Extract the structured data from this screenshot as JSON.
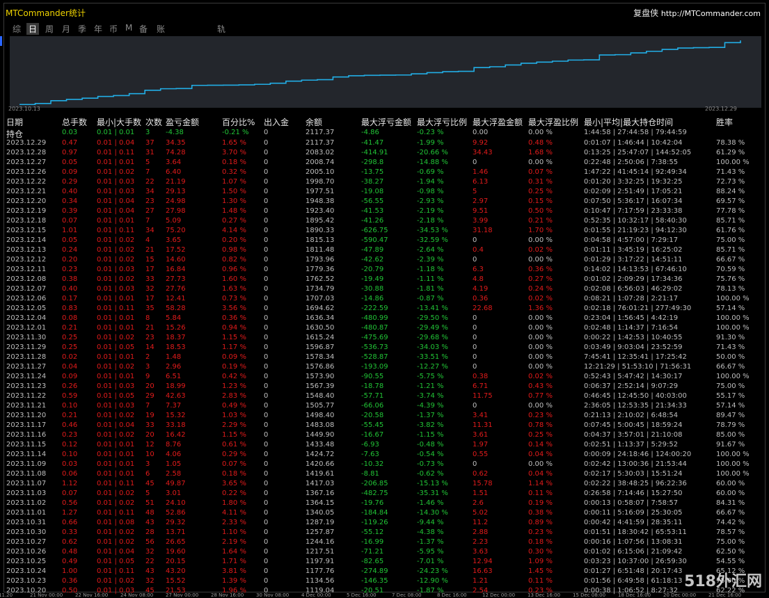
{
  "app_title": "MTCommander统计",
  "brand": {
    "name": "复盘侠",
    "url": "http://MTCommander.com"
  },
  "tabs": [
    "综",
    "日",
    "周",
    "月",
    "季",
    "年",
    "币",
    "M",
    "备",
    "账户",
    "轨迹"
  ],
  "active_tab": "日",
  "colors": {
    "profit": "#e21b1b",
    "loss": "#21c436",
    "neutral": "#bfbfbf",
    "line": "#22aee6",
    "panel": "#23262c"
  },
  "chart_data": {
    "type": "line",
    "x_labels": [
      "2023.10.13",
      "2023.12.29"
    ],
    "series": [
      {
        "values": [
          1119.04,
          1134.56,
          1177.76,
          1197.91,
          1217.51,
          1244.16,
          1257.87,
          1287.19,
          1340.05,
          1364.15,
          1367.16,
          1417.03,
          1419.61,
          1420.66,
          1424.72,
          1433.48,
          1449.9,
          1483.08,
          1498.4,
          1505.77,
          1548.4,
          1567.39,
          1573.9,
          1576.86,
          1578.34,
          1596.87,
          1615.24,
          1630.5,
          1636.34,
          1694.62,
          1707.03,
          1734.79,
          1762.52,
          1779.36,
          1793.96,
          1811.48,
          1815.13,
          1890.33,
          1895.42,
          1923.4,
          1948.38,
          1977.51,
          1998.7,
          2005.1,
          2008.74,
          2083.02,
          2117.37
        ]
      }
    ]
  },
  "header": {
    "date": "日期",
    "total_lots": "总手数",
    "min_max_lots": "最小|大手数",
    "count": "次数",
    "pnl": "盈亏金额",
    "pct": "百分比%",
    "inout": "出入金",
    "balance": "余额",
    "max_float_loss": "最大浮亏金额",
    "max_float_loss_pct": "最大浮亏比例",
    "max_float_profit": "最大浮盈金额",
    "max_float_profit_pct": "最大浮盈比例",
    "hold_time": "最小|平均|最大持仓时间",
    "winrate": "胜率"
  },
  "holding": {
    "label": "持仓",
    "lots": "0.03",
    "minmax": "0.01 | 0.01",
    "count": "3",
    "pnl": "-4.38",
    "pct": "-0.21 %",
    "inout": "0",
    "balance": "2117.37",
    "fl": "-4.86",
    "flp": "-0.23 %",
    "fp": "0.00",
    "fpp": "0.00 %",
    "time": "1:44:58 | 27:44:58 | 79:44:59"
  },
  "rows": [
    [
      "2023.12.29",
      "0.47",
      "0.01 | 0.04",
      "37",
      "34.35",
      "1.65 %",
      "0",
      "2117.37",
      "-41.47",
      "-1.99 %",
      "9.92",
      "0.48 %",
      "0:01:07 | 1:46:44 | 10:42:04",
      "78.38 %"
    ],
    [
      "2023.12.28",
      "0.97",
      "0.01 | 0.11",
      "31",
      "74.28",
      "3.70 %",
      "0",
      "2083.02",
      "-414.91",
      "-20.66 %",
      "34.43",
      "1.68 %",
      "0:13:25 | 25:47:07 | 144:52:05",
      "61.29 %"
    ],
    [
      "2023.12.27",
      "0.05",
      "0.01 | 0.01",
      "5",
      "3.64",
      "0.18 %",
      "0",
      "2008.74",
      "-298.8",
      "-14.88 %",
      "0",
      "0.00 %",
      "0:22:48 | 2:50:06 | 7:38:55",
      "100.00 %"
    ],
    [
      "2023.12.26",
      "0.09",
      "0.01 | 0.02",
      "7",
      "6.40",
      "0.32 %",
      "0",
      "2005.10",
      "-13.75",
      "-0.69 %",
      "1.46",
      "0.07 %",
      "1:47:22 | 41:45:14 | 92:49:34",
      "71.43 %"
    ],
    [
      "2023.12.22",
      "0.29",
      "0.01 | 0.03",
      "22",
      "21.19",
      "1.07 %",
      "0",
      "1998.70",
      "-38.27",
      "-1.94 %",
      "6.13",
      "0.31 %",
      "0:01:20 | 3:32:25 | 19:32:25",
      "72.73 %"
    ],
    [
      "2023.12.21",
      "0.40",
      "0.01 | 0.03",
      "34",
      "29.13",
      "1.50 %",
      "0",
      "1977.51",
      "-19.08",
      "-0.98 %",
      "5",
      "0.25 %",
      "0:02:09 | 2:51:49 | 17:05:21",
      "88.24 %"
    ],
    [
      "2023.12.20",
      "0.34",
      "0.01 | 0.04",
      "23",
      "24.98",
      "1.30 %",
      "0",
      "1948.38",
      "-56.55",
      "-2.93 %",
      "2.97",
      "0.15 %",
      "0:07:50 | 5:36:17 | 16:07:34",
      "69.57 %"
    ],
    [
      "2023.12.19",
      "0.39",
      "0.01 | 0.04",
      "27",
      "27.98",
      "1.48 %",
      "0",
      "1923.40",
      "-41.53",
      "-2.19 %",
      "9.51",
      "0.50 %",
      "0:10:47 | 7:17:59 | 23:33:38",
      "77.78 %"
    ],
    [
      "2023.12.18",
      "0.07",
      "0.01 | 0.01",
      "7",
      "5.09",
      "0.27 %",
      "0",
      "1895.42",
      "-41.26",
      "-2.18 %",
      "3.99",
      "0.21 %",
      "0:52:35 | 10:32:17 | 58:40:30",
      "85.71 %"
    ],
    [
      "2023.12.15",
      "1.01",
      "0.01 | 0.11",
      "34",
      "75.20",
      "4.14 %",
      "0",
      "1890.33",
      "-626.75",
      "-34.53 %",
      "31.18",
      "1.70 %",
      "0:01:55 | 21:19:23 | 94:12:30",
      "61.76 %"
    ],
    [
      "2023.12.14",
      "0.05",
      "0.01 | 0.02",
      "4",
      "3.65",
      "0.20 %",
      "0",
      "1815.13",
      "-590.47",
      "-32.59 %",
      "0",
      "0.00 %",
      "0:04:58 | 4:57:00 | 7:29:17",
      "75.00 %"
    ],
    [
      "2023.12.13",
      "0.24",
      "0.01 | 0.02",
      "21",
      "17.52",
      "0.98 %",
      "0",
      "1811.48",
      "-47.89",
      "-2.64 %",
      "0.4",
      "0.02 %",
      "0:01:11 | 3:45:19 | 16:25:02",
      "85.71 %"
    ],
    [
      "2023.12.12",
      "0.20",
      "0.01 | 0.02",
      "15",
      "14.60",
      "0.82 %",
      "0",
      "1793.96",
      "-42.62",
      "-2.39 %",
      "0",
      "0.00 %",
      "0:01:29 | 3:17:22 | 14:51:11",
      "66.67 %"
    ],
    [
      "2023.12.11",
      "0.23",
      "0.01 | 0.03",
      "17",
      "16.84",
      "0.96 %",
      "0",
      "1779.36",
      "-20.79",
      "-1.18 %",
      "6.3",
      "0.36 %",
      "0:14:02 | 14:13:53 | 67:46:10",
      "70.59 %"
    ],
    [
      "2023.12.08",
      "0.38",
      "0.01 | 0.02",
      "33",
      "27.73",
      "1.60 %",
      "0",
      "1762.52",
      "-19.49",
      "-1.11 %",
      "4.8",
      "0.27 %",
      "0:01:02 | 2:09:29 | 17:34:36",
      "75.76 %"
    ],
    [
      "2023.12.07",
      "0.40",
      "0.01 | 0.03",
      "32",
      "27.76",
      "1.63 %",
      "0",
      "1734.79",
      "-30.88",
      "-1.81 %",
      "4.19",
      "0.24 %",
      "0:02:08 | 6:56:03 | 46:29:02",
      "78.13 %"
    ],
    [
      "2023.12.06",
      "0.17",
      "0.01 | 0.01",
      "17",
      "12.41",
      "0.73 %",
      "0",
      "1707.03",
      "-14.86",
      "-0.87 %",
      "0.36",
      "0.02 %",
      "0:08:21 | 1:07:28 | 2:21:17",
      "100.00 %"
    ],
    [
      "2023.12.05",
      "0.83",
      "0.01 | 0.11",
      "35",
      "58.28",
      "3.56 %",
      "0",
      "1694.62",
      "-222.59",
      "-13.41 %",
      "22.68",
      "1.36 %",
      "0:02:18 | 76:01:21 | 277:49:30",
      "57.14 %"
    ],
    [
      "2023.12.04",
      "0.08",
      "0.01 | 0.01",
      "8",
      "5.84",
      "0.36 %",
      "0",
      "1636.34",
      "-480.99",
      "-29.50 %",
      "0",
      "0.00 %",
      "0:23:04 | 1:56:45 | 4:42:19",
      "100.00 %"
    ],
    [
      "2023.12.01",
      "0.21",
      "0.01 | 0.01",
      "21",
      "15.26",
      "0.94 %",
      "0",
      "1630.50",
      "-480.87",
      "-29.49 %",
      "0",
      "0.00 %",
      "0:02:48 | 1:14:37 | 7:16:54",
      "100.00 %"
    ],
    [
      "2023.11.30",
      "0.25",
      "0.01 | 0.02",
      "23",
      "18.37",
      "1.15 %",
      "0",
      "1615.24",
      "-475.69",
      "-29.68 %",
      "0",
      "0.00 %",
      "0:00:22 | 1:42:53 | 10:40:55",
      "91.30 %"
    ],
    [
      "2023.11.29",
      "0.25",
      "0.01 | 0.05",
      "14",
      "18.53",
      "1.17 %",
      "0",
      "1596.87",
      "-536.73",
      "-34.03 %",
      "0",
      "0.00 %",
      "0:03:49 | 9:03:04 | 23:52:59",
      "71.43 %"
    ],
    [
      "2023.11.28",
      "0.02",
      "0.01 | 0.01",
      "2",
      "1.48",
      "0.09 %",
      "0",
      "1578.34",
      "-528.87",
      "-33.51 %",
      "0",
      "0.00 %",
      "7:45:41 | 12:35:41 | 17:25:42",
      "50.00 %"
    ],
    [
      "2023.11.27",
      "0.04",
      "0.01 | 0.02",
      "3",
      "2.96",
      "0.19 %",
      "0",
      "1576.86",
      "-193.09",
      "-12.27 %",
      "0",
      "0.00 %",
      "12:21:29 | 51:53:10 | 71:56:31",
      "66.67 %"
    ],
    [
      "2023.11.24",
      "0.09",
      "0.01 | 0.01",
      "9",
      "6.51",
      "0.42 %",
      "0",
      "1573.90",
      "-90.55",
      "-5.75 %",
      "0.38",
      "0.02 %",
      "0:52:43 | 5:47:42 | 14:30:17",
      "100.00 %"
    ],
    [
      "2023.11.23",
      "0.26",
      "0.01 | 0.03",
      "20",
      "18.99",
      "1.23 %",
      "0",
      "1567.39",
      "-18.78",
      "-1.21 %",
      "6.71",
      "0.43 %",
      "0:06:37 | 2:52:14 | 9:07:29",
      "75.00 %"
    ],
    [
      "2023.11.22",
      "0.59",
      "0.01 | 0.05",
      "29",
      "42.63",
      "2.83 %",
      "0",
      "1548.40",
      "-57.71",
      "-3.74 %",
      "11.75",
      "0.77 %",
      "0:46:45 | 12:45:50 | 40:03:00",
      "55.17 %"
    ],
    [
      "2023.11.21",
      "0.10",
      "0.01 | 0.03",
      "7",
      "7.37",
      "0.49 %",
      "0",
      "1505.77",
      "-66.06",
      "-4.39 %",
      "0",
      "0.00 %",
      "2:36:05 | 12:53:35 | 21:34:33",
      "57.14 %"
    ],
    [
      "2023.11.20",
      "0.21",
      "0.01 | 0.02",
      "19",
      "15.32",
      "1.03 %",
      "0",
      "1498.40",
      "-20.58",
      "-1.37 %",
      "3.41",
      "0.23 %",
      "0:21:13 | 2:10:02 | 6:48:54",
      "89.47 %"
    ],
    [
      "2023.11.17",
      "0.46",
      "0.01 | 0.04",
      "33",
      "33.18",
      "2.29 %",
      "0",
      "1483.08",
      "-55.45",
      "-3.82 %",
      "11.31",
      "0.78 %",
      "0:07:45 | 5:00:45 | 18:59:24",
      "78.79 %"
    ],
    [
      "2023.11.16",
      "0.23",
      "0.01 | 0.02",
      "20",
      "16.42",
      "1.15 %",
      "0",
      "1449.90",
      "-16.67",
      "-1.15 %",
      "3.61",
      "0.25 %",
      "0:04:37 | 3:57:01 | 21:10:08",
      "85.00 %"
    ],
    [
      "2023.11.15",
      "0.12",
      "0.01 | 0.01",
      "12",
      "8.76",
      "0.61 %",
      "0",
      "1433.48",
      "-6.93",
      "-0.48 %",
      "1.97",
      "0.14 %",
      "0:02:51 | 1:13:37 | 5:29:52",
      "91.67 %"
    ],
    [
      "2023.11.14",
      "0.10",
      "0.01 | 0.01",
      "10",
      "4.06",
      "0.29 %",
      "0",
      "1424.72",
      "-7.63",
      "-0.54 %",
      "0.55",
      "0.04 %",
      "0:00:09 | 24:18:46 | 124:00:20",
      "100.00 %"
    ],
    [
      "2023.11.09",
      "0.03",
      "0.01 | 0.01",
      "3",
      "1.05",
      "0.07 %",
      "0",
      "1420.66",
      "-10.32",
      "-0.73 %",
      "0",
      "0.00 %",
      "0:02:42 | 13:00:36 | 21:53:44",
      "100.00 %"
    ],
    [
      "2023.11.08",
      "0.06",
      "0.01 | 0.01",
      "6",
      "2.58",
      "0.18 %",
      "0",
      "1419.61",
      "-8.81",
      "-0.62 %",
      "0.62",
      "0.04 %",
      "0:02:17 | 5:30:03 | 15:51:24",
      "100.00 %"
    ],
    [
      "2023.11.07",
      "1.12",
      "0.01 | 0.11",
      "45",
      "49.87",
      "3.65 %",
      "0",
      "1417.03",
      "-206.85",
      "-15.13 %",
      "15.78",
      "1.14 %",
      "0:02:22 | 38:48:25 | 96:22:36",
      "60.00 %"
    ],
    [
      "2023.11.03",
      "0.07",
      "0.01 | 0.02",
      "5",
      "3.01",
      "0.22 %",
      "0",
      "1367.16",
      "-482.75",
      "-35.31 %",
      "1.51",
      "0.11 %",
      "0:26:58 | 7:14:46 | 15:27:50",
      "60.00 %"
    ],
    [
      "2023.11.02",
      "0.56",
      "0.01 | 0.02",
      "51",
      "24.10",
      "1.80 %",
      "0",
      "1364.15",
      "-19.76",
      "-1.46 %",
      "2.6",
      "0.19 %",
      "0:00:13 | 0:58:07 | 7:58:57",
      "84.31 %"
    ],
    [
      "2023.11.01",
      "1.27",
      "0.01 | 0.11",
      "48",
      "52.86",
      "4.11 %",
      "0",
      "1340.05",
      "-184.84",
      "-14.30 %",
      "5.02",
      "0.38 %",
      "0:00:11 | 5:16:09 | 25:30:05",
      "66.67 %"
    ],
    [
      "2023.10.31",
      "0.66",
      "0.01 | 0.08",
      "43",
      "29.32",
      "2.33 %",
      "0",
      "1287.19",
      "-119.26",
      "-9.44 %",
      "11.2",
      "0.89 %",
      "0:00:42 | 4:41:59 | 28:35:11",
      "74.42 %"
    ],
    [
      "2023.10.30",
      "0.33",
      "0.01 | 0.02",
      "28",
      "13.71",
      "1.10 %",
      "0",
      "1257.87",
      "-55.12",
      "-4.38 %",
      "2.88",
      "0.23 %",
      "0:01:51 | 18:30:42 | 65:53:11",
      "78.57 %"
    ],
    [
      "2023.10.27",
      "0.62",
      "0.01 | 0.02",
      "56",
      "26.65",
      "2.19 %",
      "0",
      "1244.16",
      "-16.99",
      "-1.37 %",
      "2.23",
      "0.18 %",
      "0:00:16 | 1:07:56 | 13:08:31",
      "75.00 %"
    ],
    [
      "2023.10.26",
      "0.48",
      "0.01 | 0.04",
      "32",
      "19.60",
      "1.64 %",
      "0",
      "1217.51",
      "-71.21",
      "-5.95 %",
      "3.63",
      "0.30 %",
      "0:01:02 | 6:15:06 | 21:09:42",
      "62.50 %"
    ],
    [
      "2023.10.25",
      "0.49",
      "0.01 | 0.05",
      "22",
      "20.15",
      "1.71 %",
      "0",
      "1197.91",
      "-82.65",
      "-7.01 %",
      "12.94",
      "1.09 %",
      "0:03:23 | 10:37:00 | 26:59:30",
      "54.55 %"
    ],
    [
      "2023.10.24",
      "1.00",
      "0.01 | 0.11",
      "43",
      "43.20",
      "3.81 %",
      "0",
      "1177.76",
      "-274.89",
      "-24.23 %",
      "16.63",
      "1.45 %",
      "0:01:27 | 6:51:48 | 20:17:43",
      "65.12 %"
    ],
    [
      "2023.10.23",
      "0.36",
      "0.01 | 0.02",
      "32",
      "15.52",
      "1.39 %",
      "0",
      "1134.56",
      "-146.35",
      "-12.90 %",
      "1.21",
      "0.11 %",
      "0:01:56 | 6:49:58 | 61:18:13",
      "75.00 %"
    ],
    [
      "2023.10.20",
      "0.50",
      "0.01 | 0.03",
      "45",
      "21.53",
      "1.96 %",
      "0",
      "1119.04",
      "-20.51",
      "-1.87 %",
      "2.54",
      "0.23 %",
      "0:00:38 | 1:06:52 | 8:27:32",
      "62.22 %"
    ]
  ],
  "bottom_axis": [
    "2023.11.20",
    "21 Nov 00:00",
    "22 Nov 16:00",
    "24 Nov 08:00",
    "27 Nov 00:00",
    "28 Nov 16:00",
    "30 Nov 08:00",
    "4 Dec 00:00",
    "5 Dec 16:00",
    "7 Dec 08:00",
    "8 Dec 16:00",
    "12 Dec 00:00",
    "13 Dec 16:00",
    "15 Dec 08:00",
    "18 Dec 16:00",
    "20 Dec 00:00",
    "21 Dec 16:00"
  ],
  "watermark": "518外汇网"
}
